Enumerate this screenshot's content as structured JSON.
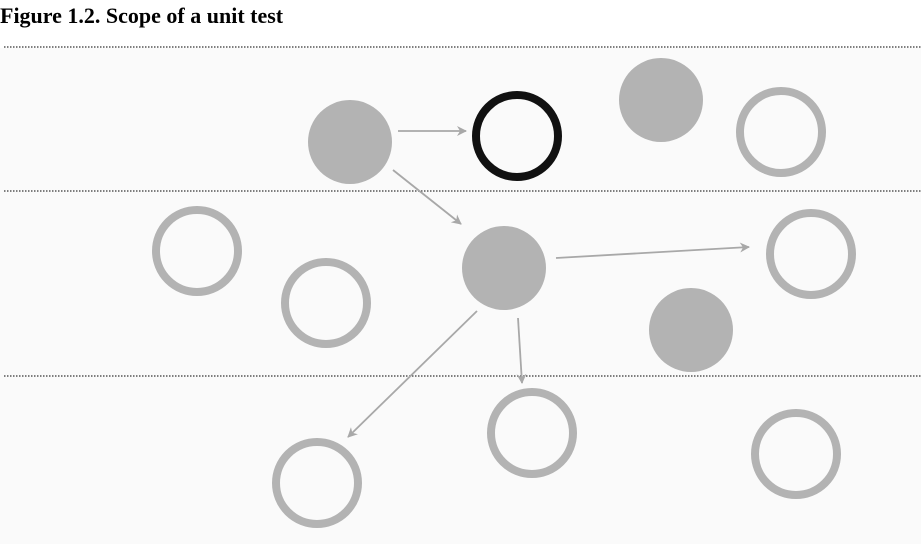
{
  "figure": {
    "title": "Figure 1.2. Scope of a unit test"
  },
  "colors": {
    "background": "#fafafa",
    "divider": "#555555",
    "filled_node": "#b3b3b3",
    "hollow_node_stroke": "#b3b3b3",
    "unit_under_test_stroke": "#111111",
    "arrow": "#a8a8a8"
  },
  "diagram": {
    "layers": 3,
    "nodes": [
      {
        "id": "n1",
        "kind": "filled"
      },
      {
        "id": "n2",
        "kind": "unit-under-test"
      },
      {
        "id": "n3",
        "kind": "filled"
      },
      {
        "id": "n4",
        "kind": "hollow"
      },
      {
        "id": "n5",
        "kind": "hollow"
      },
      {
        "id": "n6",
        "kind": "hollow"
      },
      {
        "id": "n7",
        "kind": "filled"
      },
      {
        "id": "n8",
        "kind": "hollow"
      },
      {
        "id": "n9",
        "kind": "filled"
      },
      {
        "id": "n10",
        "kind": "hollow"
      },
      {
        "id": "n11",
        "kind": "hollow"
      },
      {
        "id": "n12",
        "kind": "hollow"
      }
    ],
    "edges": [
      {
        "from": "n1",
        "to": "n2"
      },
      {
        "from": "n1",
        "to": "n7"
      },
      {
        "from": "n7",
        "to": "n8"
      },
      {
        "from": "n7",
        "to": "n11"
      },
      {
        "from": "n7",
        "to": "n10"
      }
    ]
  }
}
